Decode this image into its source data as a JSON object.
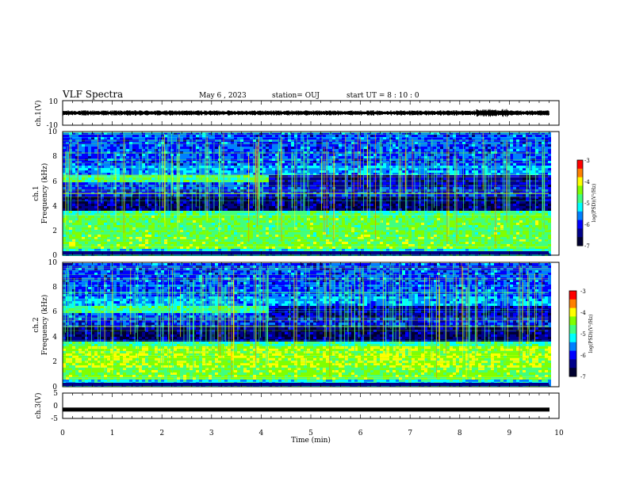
{
  "header": {
    "title": "VLF Spectra",
    "date": "May 6  , 2023",
    "station": "station= OUJ",
    "start_ut": "start  UT  =   8  : 10 : 0"
  },
  "colors": {
    "background": "#ffffff",
    "colormap": [
      "#000030",
      "#00008b",
      "#0000ff",
      "#0080ff",
      "#00ffff",
      "#40ff80",
      "#80ff00",
      "#ffff00",
      "#ff8000",
      "#ff0000",
      "#ffffff"
    ]
  },
  "chart_data": [
    {
      "id": "ch1-waveform",
      "type": "line",
      "ylabel": "ch.1(V)",
      "ylim": [
        -10,
        10
      ],
      "yticks": [
        "10",
        "-10"
      ],
      "x_range_min": [
        0,
        9.85
      ],
      "mean_value": 0,
      "amplitude_approx": 1.5
    },
    {
      "id": "ch1-spectrogram",
      "type": "heatmap",
      "ylabel_line1": "ch.1",
      "ylabel_line2": "Frequency  (kHz)",
      "ylim": [
        0,
        10
      ],
      "yticks": [
        "0",
        "2",
        "4",
        "6",
        "8",
        "10"
      ],
      "colorbar": {
        "label": "log(PSD)(V²/Hz)",
        "range": [
          -7,
          -3
        ],
        "ticks": [
          "-3",
          "-4",
          "-5",
          "-6",
          "-7"
        ]
      }
    },
    {
      "id": "ch2-spectrogram",
      "type": "heatmap",
      "ylabel_line1": "ch.2",
      "ylabel_line2": "Frequency  (kHz)",
      "ylim": [
        0,
        10
      ],
      "yticks": [
        "0",
        "2",
        "4",
        "6",
        "8",
        "10"
      ],
      "colorbar": {
        "label": "log(PSD)(V²/Hz)",
        "range": [
          -7,
          -3
        ],
        "ticks": [
          "-3",
          "-4",
          "-5",
          "-6",
          "-7"
        ]
      }
    },
    {
      "id": "ch3-waveform",
      "type": "line",
      "ylabel": "ch.3(V)",
      "ylim": [
        -5,
        5
      ],
      "yticks": [
        "5",
        "0",
        "-5"
      ],
      "value": -1.5
    }
  ],
  "xaxis": {
    "label": "Time  (min)",
    "range": [
      0,
      10
    ],
    "ticks": [
      "0",
      "1",
      "2",
      "3",
      "4",
      "5",
      "6",
      "7",
      "8",
      "9",
      "10"
    ]
  }
}
